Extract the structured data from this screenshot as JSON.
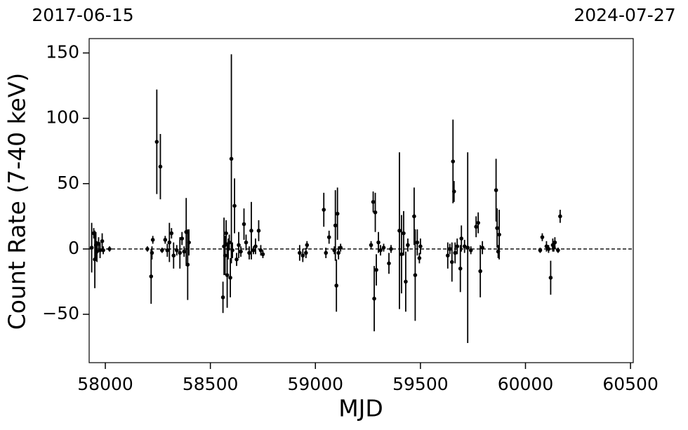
{
  "chart_data": {
    "type": "scatter",
    "annotations": [
      "2017-06-15",
      "2024-07-27"
    ],
    "xlabel": "MJD",
    "ylabel": "Count Rate (7-40 keV)",
    "xlim": [
      57923,
      60513
    ],
    "ylim": [
      -87,
      161
    ],
    "xticks": [
      58000,
      58500,
      59000,
      59500,
      60000,
      60500
    ],
    "yticks": [
      {
        "value": -50,
        "label": "−50"
      },
      0,
      50,
      100,
      150
    ],
    "hline": 0,
    "color": "#000000",
    "x": [
      57935,
      57945,
      57950,
      57955,
      57960,
      57968,
      57975,
      57985,
      57990,
      58020,
      58200,
      58218,
      58222,
      58226,
      58245,
      58262,
      58270,
      58285,
      58295,
      58305,
      58315,
      58325,
      58340,
      58355,
      58365,
      58375,
      58385,
      58392,
      58398,
      58560,
      58565,
      58570,
      58575,
      58580,
      58585,
      58590,
      58595,
      58600,
      58605,
      58615,
      58625,
      58635,
      58645,
      58660,
      58670,
      58685,
      58695,
      58705,
      58715,
      58730,
      58740,
      58750,
      58925,
      58940,
      58955,
      58960,
      59040,
      59050,
      59065,
      59090,
      59095,
      59100,
      59105,
      59110,
      59120,
      59265,
      59275,
      59280,
      59285,
      59290,
      59300,
      59310,
      59325,
      59350,
      59360,
      59400,
      59410,
      59420,
      59430,
      59440,
      59470,
      59475,
      59485,
      59495,
      59500,
      59630,
      59640,
      59650,
      59655,
      59660,
      59665,
      59675,
      59690,
      59695,
      59710,
      59725,
      59740,
      59765,
      59775,
      59785,
      59795,
      59860,
      59865,
      59870,
      59875,
      60070,
      60080,
      60100,
      60110,
      60120,
      60130,
      60135,
      60140,
      60155,
      60165
    ],
    "values": [
      1,
      12,
      -8,
      3,
      -2,
      4,
      -1,
      6,
      -1,
      0,
      0,
      -21,
      -3,
      7,
      82,
      63,
      -1,
      7,
      -1,
      5,
      12,
      -5,
      -1,
      -3,
      8,
      -2,
      13,
      -12,
      5,
      -37,
      2,
      -5,
      12,
      -20,
      0,
      5,
      -22,
      69,
      -1,
      33,
      -8,
      3,
      -2,
      19,
      5,
      -3,
      14,
      -1,
      2,
      14,
      -1,
      -4,
      -3,
      -5,
      -3,
      3,
      30,
      -3,
      9,
      -1,
      18,
      -28,
      27,
      -3,
      1,
      3,
      36,
      -38,
      28,
      -16,
      5,
      -1,
      1,
      -11,
      0,
      14,
      -4,
      12,
      -25,
      3,
      25,
      -20,
      5,
      -7,
      2,
      -5,
      0,
      -10,
      67,
      44,
      -3,
      2,
      -15,
      8,
      2,
      1,
      -1,
      17,
      20,
      -17,
      1,
      45,
      16,
      -2,
      11,
      -1,
      9,
      2,
      0,
      -22,
      3,
      1,
      5,
      -1,
      25
    ],
    "errors": [
      19,
      4,
      22,
      10,
      8,
      5,
      6,
      6,
      3,
      2,
      2,
      21,
      5,
      3,
      40,
      25,
      2,
      3,
      5,
      15,
      4,
      10,
      4,
      12,
      5,
      4,
      26,
      27,
      10,
      12,
      22,
      15,
      10,
      25,
      8,
      6,
      15,
      80,
      6,
      21,
      5,
      10,
      4,
      12,
      6,
      5,
      22,
      3,
      6,
      8,
      4,
      3,
      6,
      5,
      4,
      3,
      13,
      4,
      5,
      3,
      27,
      20,
      20,
      5,
      3,
      3,
      8,
      25,
      15,
      12,
      8,
      4,
      3,
      8,
      3,
      60,
      30,
      17,
      23,
      5,
      22,
      35,
      10,
      4,
      6,
      10,
      4,
      15,
      32,
      8,
      8,
      6,
      18,
      10,
      5,
      73,
      3,
      8,
      8,
      20,
      5,
      24,
      15,
      5,
      19,
      2,
      3,
      4,
      3,
      13,
      5,
      3,
      4,
      2,
      5
    ]
  }
}
